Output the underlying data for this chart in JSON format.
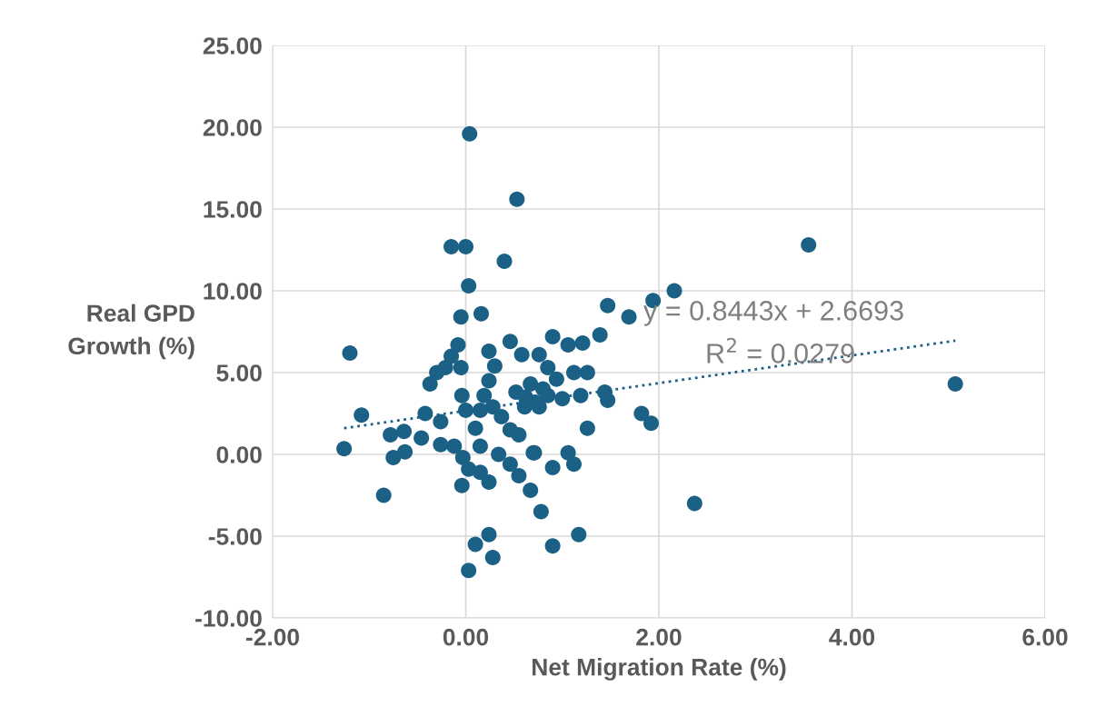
{
  "chart_data": {
    "type": "scatter",
    "xlabel": "Net Migration Rate (%)",
    "ylabel": "Real GPD\nGrowth (%)",
    "xlim": [
      -2,
      6
    ],
    "ylim": [
      -10,
      25
    ],
    "xticks": [
      {
        "value": -2,
        "label": "-2.00"
      },
      {
        "value": 0,
        "label": "0.00"
      },
      {
        "value": 2,
        "label": "2.00"
      },
      {
        "value": 4,
        "label": "4.00"
      },
      {
        "value": 6,
        "label": "6.00"
      }
    ],
    "yticks": [
      {
        "value": -10,
        "label": "-10.00"
      },
      {
        "value": -5,
        "label": "-5.00"
      },
      {
        "value": 0,
        "label": "0.00"
      },
      {
        "value": 5,
        "label": "5.00"
      },
      {
        "value": 10,
        "label": "10.00"
      },
      {
        "value": 15,
        "label": "15.00"
      },
      {
        "value": 20,
        "label": "20.00"
      },
      {
        "value": 25,
        "label": "25.00"
      }
    ],
    "grid": true,
    "marker": "circle",
    "annotations": [
      "y = 0.8443x + 2.6693",
      "R$^{2}$ = 0.0279"
    ],
    "series": [
      {
        "color": "#1b6185",
        "x": [
          0.04,
          0.53,
          -0.15,
          0.0,
          0.4,
          3.55,
          5.07,
          0.03,
          -0.05,
          0.16,
          -1.2,
          -0.08,
          -0.15,
          -0.37,
          -0.3,
          -0.21,
          -0.05,
          -1.08,
          -1.26,
          -0.85,
          -0.78,
          -0.64,
          -0.75,
          -0.63,
          -0.46,
          -0.42,
          -0.26,
          -0.26,
          -0.12,
          -0.04,
          0.0,
          0.1,
          0.15,
          -0.03,
          0.03,
          0.15,
          0.24,
          -0.04,
          0.24,
          0.19,
          0.28,
          0.37,
          0.15,
          0.24,
          0.3,
          0.46,
          0.58,
          0.52,
          0.61,
          0.46,
          0.55,
          0.34,
          0.46,
          0.55,
          0.7,
          0.67,
          0.1,
          0.24,
          0.28,
          0.03,
          2.16,
          1.94,
          1.69,
          1.47,
          1.39,
          1.21,
          1.06,
          0.9,
          0.76,
          1.12,
          1.26,
          1.19,
          1.44,
          1.47,
          1.0,
          0.85,
          0.76,
          1.82,
          1.92,
          1.26,
          0.71,
          1.06,
          1.12,
          0.9,
          0.78,
          2.37,
          0.9,
          1.17,
          0.85,
          0.67,
          0.94,
          0.72,
          0.62,
          0.8
        ],
        "values": [
          19.6,
          15.6,
          12.7,
          12.7,
          11.8,
          12.8,
          4.3,
          10.3,
          8.4,
          8.6,
          6.2,
          6.7,
          6.0,
          4.3,
          5.0,
          5.3,
          5.3,
          2.4,
          0.35,
          -2.5,
          1.2,
          1.4,
          -0.2,
          0.15,
          1.0,
          2.5,
          2.0,
          0.6,
          0.5,
          3.6,
          2.7,
          1.6,
          0.5,
          -0.2,
          -0.9,
          -1.1,
          -1.7,
          -1.9,
          4.5,
          3.6,
          2.9,
          2.3,
          2.7,
          6.3,
          5.4,
          6.9,
          6.1,
          3.8,
          2.9,
          1.5,
          1.2,
          0.0,
          -0.6,
          -1.3,
          0.1,
          -2.2,
          -5.5,
          -4.9,
          -6.3,
          -7.1,
          10.0,
          9.4,
          8.4,
          9.1,
          7.3,
          6.8,
          6.7,
          7.2,
          6.1,
          5.0,
          5.0,
          3.6,
          3.8,
          3.3,
          3.4,
          3.6,
          2.9,
          2.5,
          1.9,
          1.6,
          0.1,
          0.1,
          -0.6,
          -0.8,
          -3.5,
          -3.0,
          -5.6,
          -4.9,
          5.3,
          4.3,
          4.6,
          3.2,
          3.5,
          4.0
        ]
      },
      {
        "type": "line",
        "color": "#1b6185",
        "line_style": "dotted",
        "marker": "none",
        "x": [
          -1.26,
          5.07
        ],
        "values": [
          1.6,
          6.95
        ]
      }
    ]
  }
}
